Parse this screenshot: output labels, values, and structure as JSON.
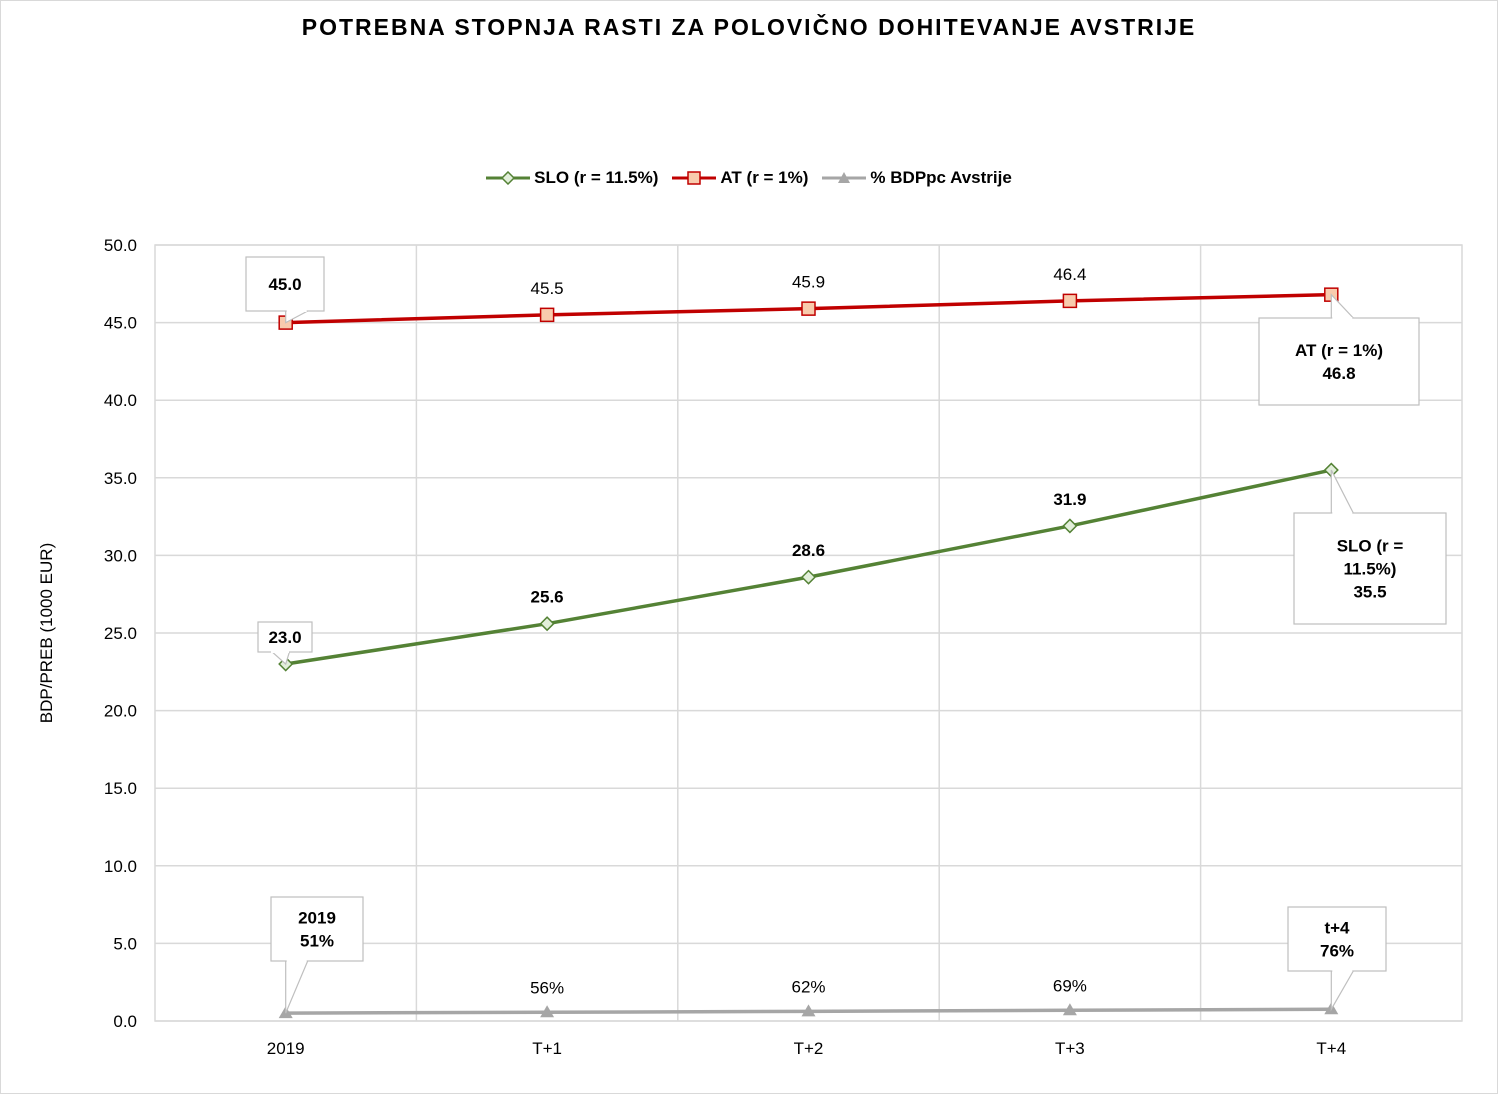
{
  "title": "POTREBNA STOPNJA RASTI ZA POLOVIČNO DOHITEVANJE AVSTRIJE",
  "legend": {
    "slo": "SLO (r = 11.5%)",
    "at": "AT (r = 1%)",
    "pct": "% BDPpc Avstrije"
  },
  "colors": {
    "slo": "#548235",
    "slo_marker_fill": "#e2efda",
    "at": "#c00000",
    "at_marker_fill": "#f8cbad",
    "pct": "#a6a6a6",
    "grid": "#d9d9d9"
  },
  "chart_data": {
    "type": "line",
    "title": "POTREBNA STOPNJA RASTI ZA POLOVIČNO DOHITEVANJE AVSTRIJE",
    "categories": [
      "2019",
      "T+1",
      "T+2",
      "T+3",
      "T+4"
    ],
    "ylabel": "BDP/PREB (1000 EUR)",
    "xlabel": "",
    "ylim": [
      0,
      50
    ],
    "yticks": [
      "0.0",
      "5.0",
      "10.0",
      "15.0",
      "20.0",
      "25.0",
      "30.0",
      "35.0",
      "40.0",
      "45.0",
      "50.0"
    ],
    "grid": true,
    "legend_position": "top",
    "series": [
      {
        "name": "SLO (r = 11.5%)",
        "values": [
          23.0,
          25.6,
          28.6,
          31.9,
          35.5
        ],
        "labels": [
          "23.0",
          "25.6",
          "28.6",
          "31.9",
          "35.5"
        ]
      },
      {
        "name": "AT (r = 1%)",
        "values": [
          45.0,
          45.5,
          45.9,
          46.4,
          46.8
        ],
        "labels": [
          "45.0",
          "45.5",
          "45.9",
          "46.4",
          "46.8"
        ]
      },
      {
        "name": "% BDPpc Avstrije",
        "values": [
          0.51,
          0.56,
          0.62,
          0.69,
          0.76
        ],
        "labels": [
          "51%",
          "56%",
          "62%",
          "69%",
          "76%"
        ]
      }
    ],
    "callouts": {
      "at_first": [
        "45.0"
      ],
      "at_last": [
        "AT (r = 1%)",
        "46.8"
      ],
      "slo_first": [
        "23.0"
      ],
      "slo_last": [
        "SLO (r =",
        "11.5%)",
        "35.5"
      ],
      "pct_first": [
        "2019",
        "51%"
      ],
      "pct_last": [
        "t+4",
        "76%"
      ]
    }
  }
}
